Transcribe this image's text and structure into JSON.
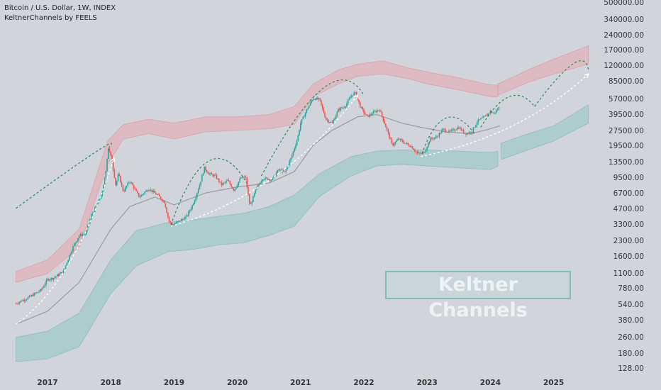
{
  "legend": {
    "symbol_line": "Bitcoin / U.S. Dollar, 1W, INDEX",
    "indicator_line": "KeltnerChannels by FEELS"
  },
  "overlay_label": "Keltner Channels",
  "colors": {
    "background": "#d2d4dc",
    "upper_band": "#e8a6ad",
    "lower_band": "#8cc5c2",
    "basis_line": "#9a9a9e",
    "candle_up": "#26a69a",
    "candle_down": "#ef5350",
    "arc_green": "#1e8e4e",
    "arrow_white": "#ffffff"
  },
  "chart_data": {
    "type": "candlestick",
    "title": "Bitcoin / U.S. Dollar, 1W, INDEX",
    "indicator": "KeltnerChannels by FEELS",
    "y_scale": "log",
    "ylim": [
      128,
      500000
    ],
    "x_tick_labels": [
      "2017",
      "2018",
      "2019",
      "2020",
      "2021",
      "2022",
      "2023",
      "2024",
      "2025"
    ],
    "y_tick_labels": [
      "500000.00",
      "340000.00",
      "240000.00",
      "170000.00",
      "120000.00",
      "85000.00",
      "57000.00",
      "39500.00",
      "27500.00",
      "19500.00",
      "13500.00",
      "9500.00",
      "6700.00",
      "4700.00",
      "3300.00",
      "2300.00",
      "1600.00",
      "1100.00",
      "780.00",
      "540.00",
      "380.00",
      "260.00",
      "180.00",
      "128.00"
    ],
    "price_path": [
      [
        2016.5,
        560
      ],
      [
        2016.7,
        640
      ],
      [
        2016.9,
        760
      ],
      [
        2017.0,
        960
      ],
      [
        2017.1,
        1000
      ],
      [
        2017.25,
        1150
      ],
      [
        2017.4,
        2000
      ],
      [
        2017.5,
        2600
      ],
      [
        2017.6,
        2700
      ],
      [
        2017.7,
        4200
      ],
      [
        2017.8,
        5500
      ],
      [
        2017.87,
        7000
      ],
      [
        2017.92,
        11000
      ],
      [
        2017.96,
        19000
      ],
      [
        2018.02,
        14000
      ],
      [
        2018.08,
        8000
      ],
      [
        2018.12,
        10500
      ],
      [
        2018.2,
        7000
      ],
      [
        2018.3,
        9000
      ],
      [
        2018.45,
        6200
      ],
      [
        2018.6,
        7500
      ],
      [
        2018.75,
        6400
      ],
      [
        2018.85,
        5500
      ],
      [
        2018.92,
        3600
      ],
      [
        2018.97,
        3300
      ],
      [
        2019.05,
        3500
      ],
      [
        2019.2,
        4000
      ],
      [
        2019.3,
        5300
      ],
      [
        2019.4,
        8000
      ],
      [
        2019.48,
        12000
      ],
      [
        2019.55,
        10500
      ],
      [
        2019.65,
        10000
      ],
      [
        2019.75,
        8200
      ],
      [
        2019.85,
        9000
      ],
      [
        2019.95,
        7200
      ],
      [
        2020.05,
        9500
      ],
      [
        2020.13,
        9800
      ],
      [
        2020.2,
        5000
      ],
      [
        2020.3,
        7500
      ],
      [
        2020.4,
        9500
      ],
      [
        2020.55,
        9200
      ],
      [
        2020.65,
        11500
      ],
      [
        2020.75,
        10800
      ],
      [
        2020.85,
        15000
      ],
      [
        2020.95,
        23000
      ],
      [
        2021.0,
        33000
      ],
      [
        2021.1,
        45000
      ],
      [
        2021.2,
        58000
      ],
      [
        2021.3,
        56000
      ],
      [
        2021.4,
        36000
      ],
      [
        2021.5,
        33000
      ],
      [
        2021.6,
        45000
      ],
      [
        2021.7,
        48000
      ],
      [
        2021.8,
        61000
      ],
      [
        2021.86,
        66000
      ],
      [
        2021.95,
        47000
      ],
      [
        2022.05,
        38000
      ],
      [
        2022.15,
        42000
      ],
      [
        2022.25,
        45000
      ],
      [
        2022.35,
        30000
      ],
      [
        2022.45,
        20000
      ],
      [
        2022.55,
        23000
      ],
      [
        2022.65,
        21000
      ],
      [
        2022.75,
        19500
      ],
      [
        2022.85,
        16500
      ],
      [
        2022.95,
        16800
      ],
      [
        2023.05,
        23000
      ],
      [
        2023.15,
        24000
      ],
      [
        2023.25,
        28500
      ],
      [
        2023.35,
        27000
      ],
      [
        2023.5,
        30000
      ],
      [
        2023.6,
        26000
      ],
      [
        2023.7,
        27000
      ],
      [
        2023.8,
        34500
      ],
      [
        2023.9,
        37500
      ],
      [
        2024.0,
        43000
      ],
      [
        2024.05,
        41000
      ],
      [
        2024.1,
        44000
      ],
      [
        2024.15,
        48000
      ]
    ],
    "keltner_basis": [
      [
        2016.5,
        350
      ],
      [
        2017.0,
        470
      ],
      [
        2017.5,
        900
      ],
      [
        2018.0,
        3000
      ],
      [
        2018.3,
        5000
      ],
      [
        2018.7,
        6200
      ],
      [
        2019.0,
        5200
      ],
      [
        2019.5,
        6800
      ],
      [
        2020.0,
        7800
      ],
      [
        2020.5,
        8500
      ],
      [
        2020.9,
        11000
      ],
      [
        2021.2,
        20000
      ],
      [
        2021.5,
        28000
      ],
      [
        2021.9,
        38000
      ],
      [
        2022.2,
        40000
      ],
      [
        2022.6,
        33000
      ],
      [
        2022.9,
        30000
      ],
      [
        2023.3,
        27000
      ],
      [
        2023.7,
        26000
      ],
      [
        2024.0,
        29000
      ],
      [
        2024.15,
        31000
      ]
    ],
    "upper_band_x": [
      2016.5,
      2017.0,
      2017.5,
      2017.95,
      2018.2,
      2018.6,
      2019.0,
      2019.5,
      2020.0,
      2020.5,
      2020.9,
      2021.2,
      2021.6,
      2021.9,
      2022.3,
      2022.7,
      2023.0,
      2023.5,
      2024.0,
      2024.12
    ],
    "upper_band_low": [
      900,
      1100,
      2000,
      13000,
      23000,
      26000,
      23000,
      27000,
      28000,
      29000,
      32000,
      60000,
      80000,
      95000,
      100000,
      90000,
      80000,
      70000,
      60000,
      60000
    ],
    "upper_band_high": [
      1150,
      1500,
      3000,
      22000,
      32000,
      36000,
      33000,
      38000,
      38000,
      40000,
      48000,
      80000,
      110000,
      125000,
      135000,
      115000,
      105000,
      92000,
      78000,
      78000
    ],
    "lower_band_x": [
      2016.5,
      2017.0,
      2017.5,
      2018.0,
      2018.4,
      2018.9,
      2019.3,
      2019.7,
      2020.1,
      2020.5,
      2020.9,
      2021.3,
      2021.8,
      2022.2,
      2022.6,
      2023.0,
      2023.5,
      2024.0,
      2024.12
    ],
    "lower_band_low": [
      150,
      160,
      210,
      700,
      1300,
      1800,
      1900,
      2100,
      2200,
      2600,
      3200,
      6300,
      10000,
      12500,
      13000,
      12500,
      12000,
      11500,
      12500
    ],
    "lower_band_high": [
      260,
      300,
      450,
      1500,
      2900,
      3500,
      3700,
      4000,
      4300,
      5000,
      6500,
      10500,
      15500,
      17500,
      18000,
      18000,
      17500,
      17000,
      17500
    ],
    "projection_upper_band": {
      "x": [
        2024.12,
        2024.6,
        2025.0,
        2025.55
      ],
      "low": [
        62000,
        83000,
        100000,
        125000
      ],
      "high": [
        80000,
        110000,
        140000,
        190000
      ]
    },
    "projection_lower_band": {
      "x": [
        2024.17,
        2024.6,
        2025.0,
        2025.55
      ],
      "low": [
        14500,
        18000,
        22000,
        33000
      ],
      "high": [
        21000,
        26000,
        31000,
        50000
      ]
    },
    "green_arcs": [
      {
        "from": [
          2016.5,
          4800
        ],
        "peak": [
          2017.75,
          17000
        ],
        "to": [
          2017.97,
          19000
        ]
      },
      {
        "from": [
          2018.95,
          3300
        ],
        "peak": [
          2019.55,
          14000
        ],
        "to": [
          2020.15,
          8500
        ]
      },
      {
        "from": [
          2020.38,
          10000
        ],
        "peak": [
          2021.35,
          72000
        ],
        "to": [
          2022.0,
          62000
        ]
      },
      {
        "from": [
          2022.92,
          16500
        ],
        "peak": [
          2023.3,
          37000
        ],
        "to": [
          2023.75,
          26000
        ]
      },
      {
        "from": [
          2023.85,
          30000
        ],
        "peak": [
          2024.3,
          60000
        ],
        "to": [
          2024.7,
          48000
        ]
      },
      {
        "from": [
          2024.7,
          48000
        ],
        "peak": [
          2025.3,
          125000
        ],
        "to": [
          2025.55,
          110000
        ]
      }
    ],
    "white_arrows": [
      {
        "from": [
          2016.5,
          350
        ],
        "to": [
          2018.05,
          15000
        ]
      },
      {
        "from": [
          2018.95,
          3200
        ],
        "to": [
          2021.9,
          62000
        ]
      },
      {
        "from": [
          2022.9,
          15500
        ],
        "to": [
          2025.55,
          100000
        ]
      }
    ]
  }
}
